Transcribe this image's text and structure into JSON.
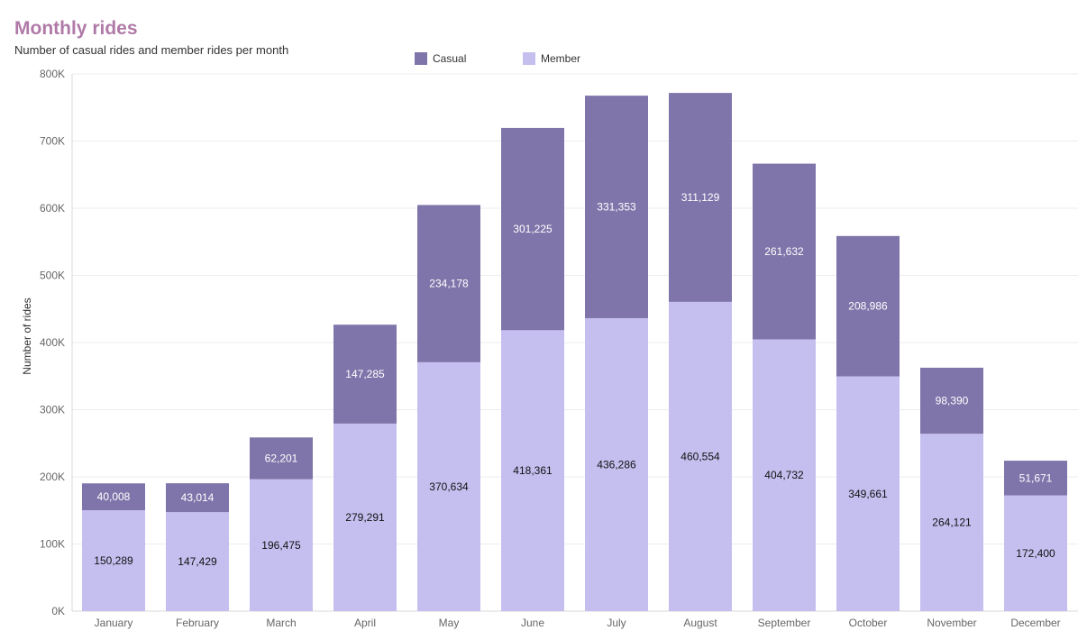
{
  "chart_data": {
    "type": "bar",
    "stacked": true,
    "title": "Monthly rides",
    "subtitle": "Number of casual rides and member rides per month",
    "xlabel": "",
    "ylabel": "Number of rides",
    "ylim": [
      0,
      800000
    ],
    "yticks": [
      0,
      100000,
      200000,
      300000,
      400000,
      500000,
      600000,
      700000,
      800000
    ],
    "ytick_labels": [
      "0K",
      "100K",
      "200K",
      "300K",
      "400K",
      "500K",
      "600K",
      "700K",
      "800K"
    ],
    "grid": true,
    "legend_position": "top-center",
    "categories": [
      "January",
      "February",
      "March",
      "April",
      "May",
      "June",
      "July",
      "August",
      "September",
      "October",
      "November",
      "December"
    ],
    "series": [
      {
        "name": "Member",
        "color": "#c5bff0",
        "label_color": "#111111",
        "values": [
          150289,
          147429,
          196475,
          279291,
          370634,
          418361,
          436286,
          460554,
          404732,
          349661,
          264121,
          172400
        ],
        "labels": [
          "150,289",
          "147,429",
          "196,475",
          "279,291",
          "370,634",
          "418,361",
          "436,286",
          "460,554",
          "404,732",
          "349,661",
          "264,121",
          "172,400"
        ]
      },
      {
        "name": "Casual",
        "color": "#8075aa",
        "label_color": "#ffffff",
        "values": [
          40008,
          43014,
          62201,
          147285,
          234178,
          301225,
          331353,
          311129,
          261632,
          208986,
          98390,
          51671
        ],
        "labels": [
          "40,008",
          "43,014",
          "62,201",
          "147,285",
          "234,178",
          "301,225",
          "331,353",
          "311,129",
          "261,632",
          "208,986",
          "98,390",
          "51,671"
        ]
      }
    ],
    "legend_order": [
      "Casual",
      "Member"
    ]
  }
}
